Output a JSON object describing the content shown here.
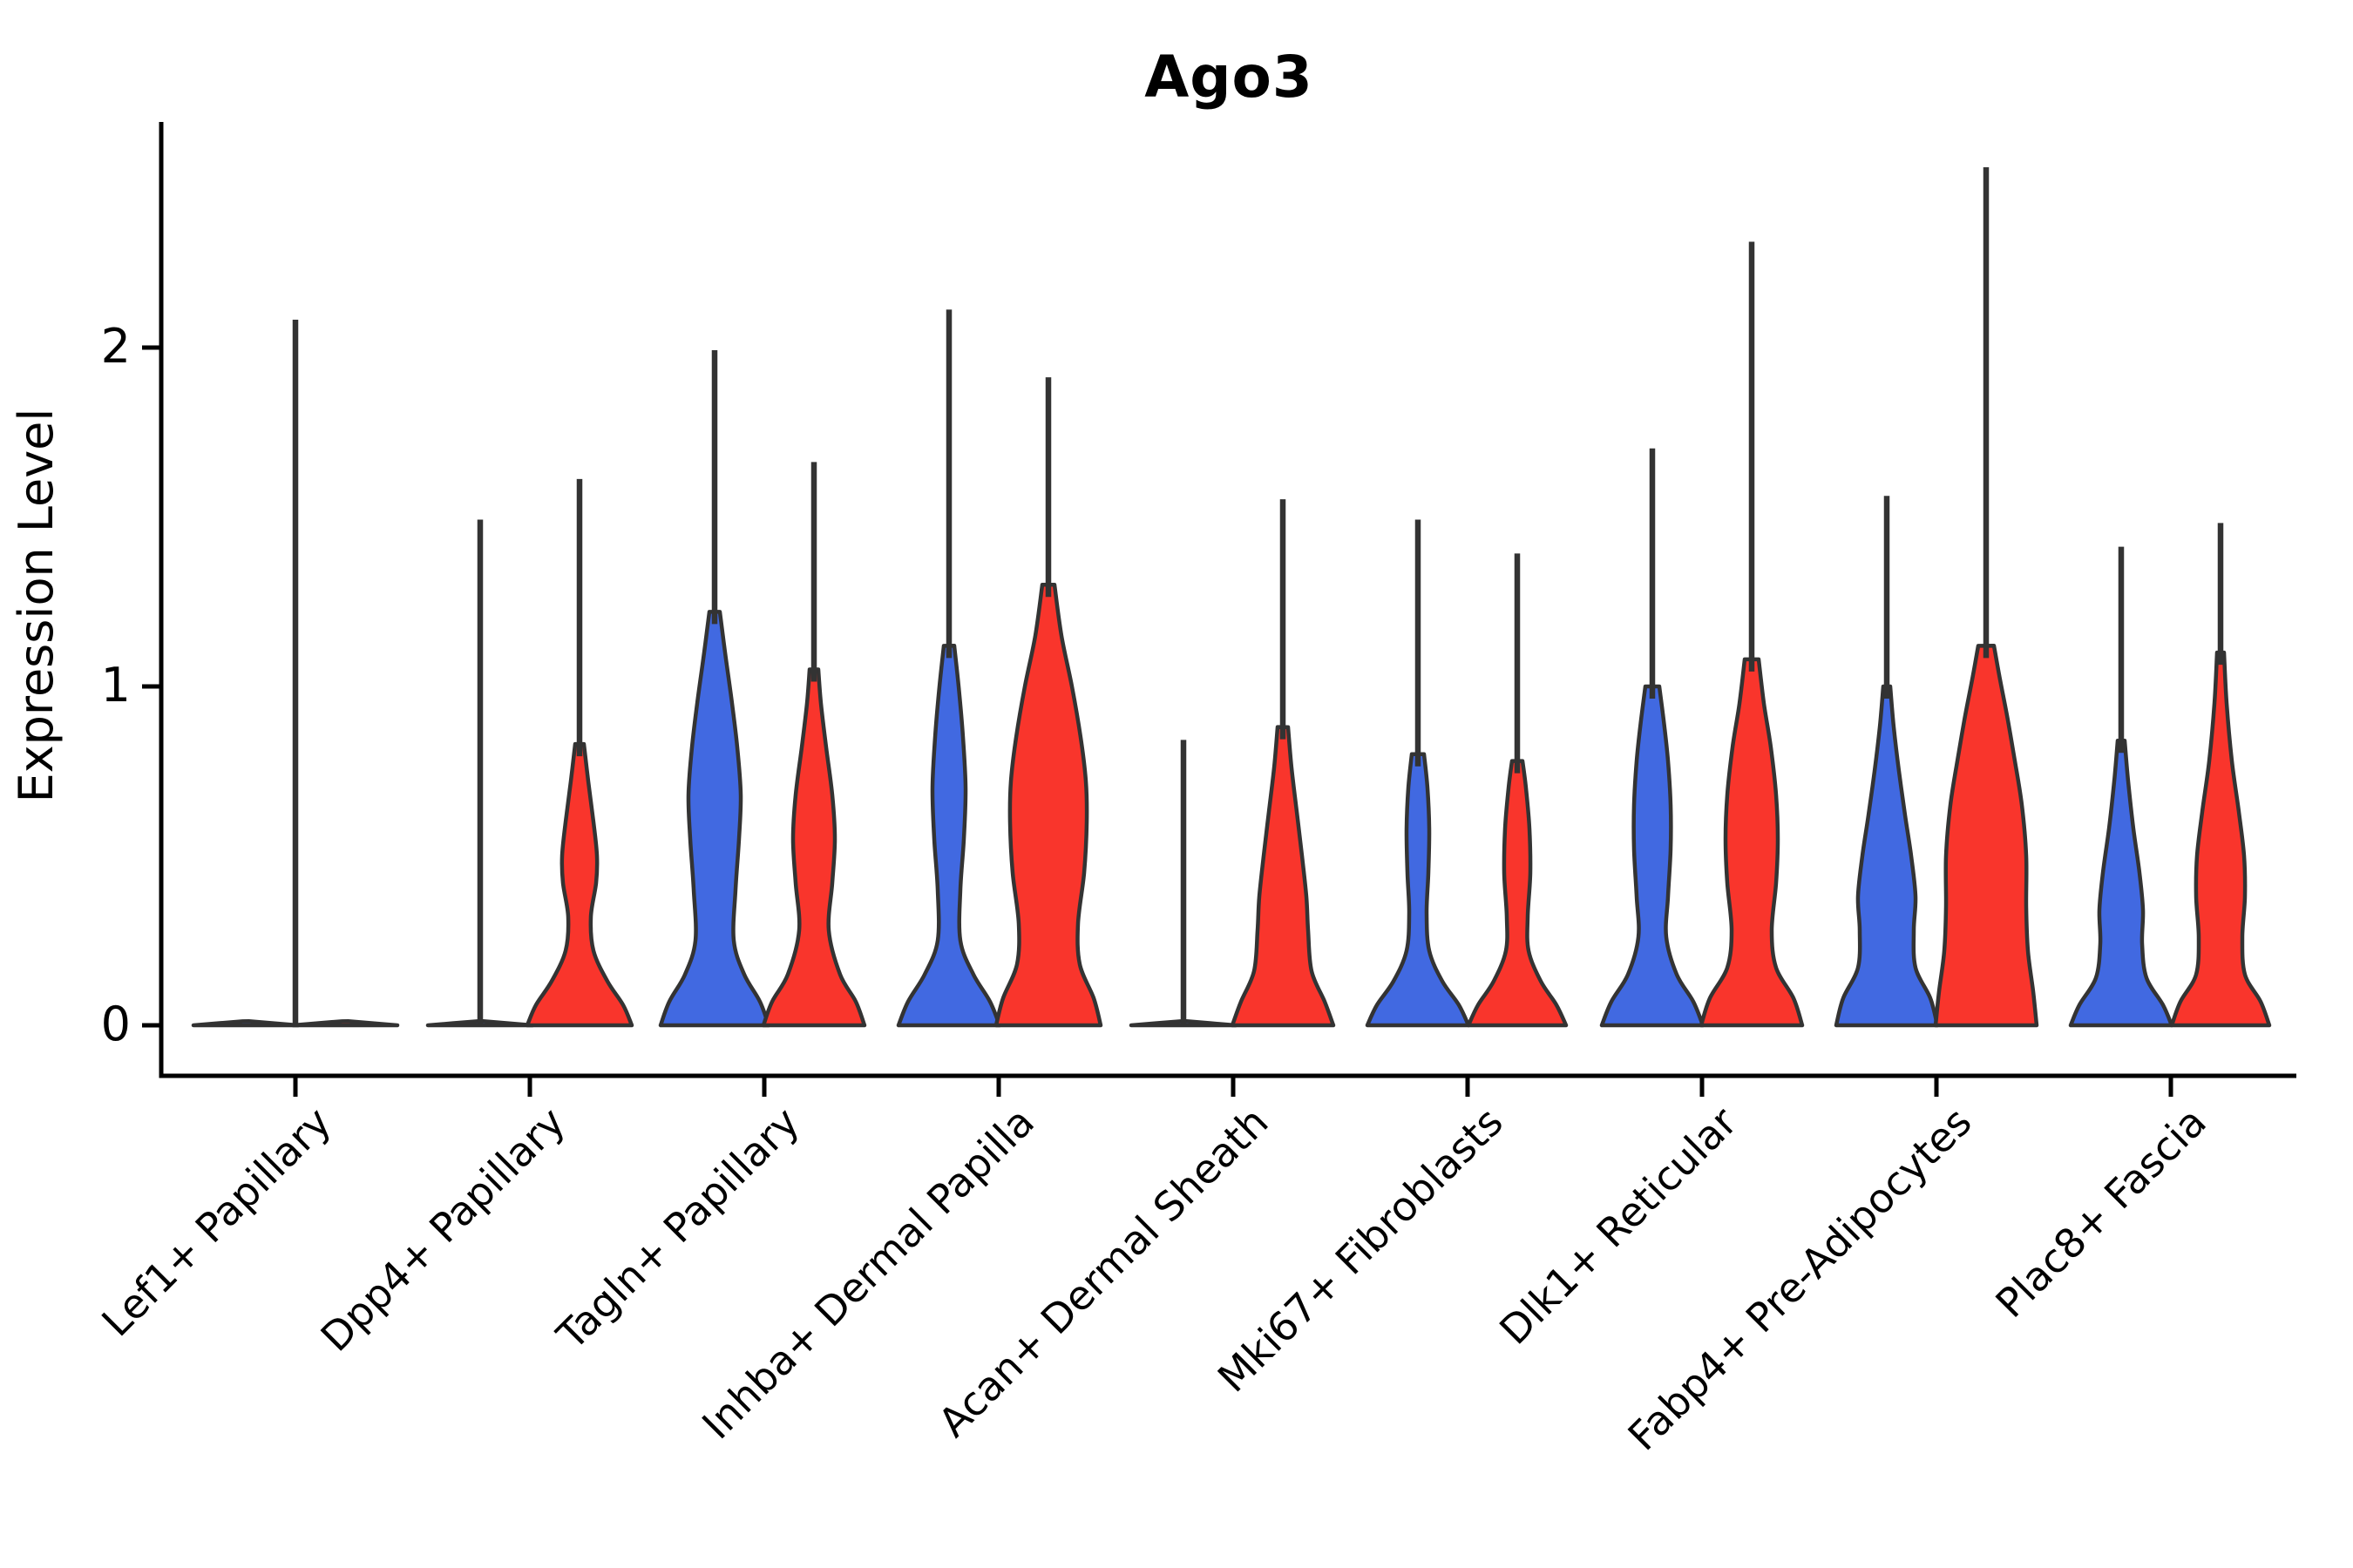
{
  "chart_data": {
    "type": "violin",
    "title": "Ago3",
    "ylabel": "Expression Level",
    "xlabel": "",
    "yticks": [
      "0",
      "1",
      "2"
    ],
    "ytick_values": [
      0,
      1,
      2
    ],
    "ylim": [
      -0.15,
      2.67
    ],
    "grid": false,
    "legend": "none",
    "split_colors": {
      "blue": "#4169E1",
      "red": "#F9352C"
    },
    "outline_color": "#333333",
    "categories": [
      "Lef1+ Papillary",
      "Dpp4+ Papillary",
      "Tagln+ Papillary",
      "Inhba+ Dermal Papilla",
      "Acan+ Dermal Sheath",
      "Mki67+ Fibroblasts",
      "Dlk1+ Reticular",
      "Fabp4+ Pre-Adipocytes",
      "Plac8+ Fascia"
    ],
    "violins": [
      {
        "category": "Lef1+ Papillary",
        "blue": {
          "max_expression": 2.09,
          "flat": true,
          "spike_dx": 57,
          "profile": []
        },
        "red": {
          "max_expression": 0.0,
          "flat": true,
          "spike_dx": 0,
          "profile": []
        }
      },
      {
        "category": "Dpp4+ Papillary",
        "blue": {
          "max_expression": 1.5,
          "flat": true,
          "spike_dx": 0,
          "profile": []
        },
        "red": {
          "max_expression": 1.62,
          "flat": false,
          "spike_dx": 0,
          "profile": [
            [
              0,
              60
            ],
            [
              0.06,
              50
            ],
            [
              0.13,
              32
            ],
            [
              0.22,
              16
            ],
            [
              0.32,
              13
            ],
            [
              0.42,
              19
            ],
            [
              0.5,
              20
            ],
            [
              0.6,
              16
            ],
            [
              0.72,
              10
            ],
            [
              0.83,
              5
            ]
          ]
        }
      },
      {
        "category": "Tagln+ Papillary",
        "blue": {
          "max_expression": 2.0,
          "flat": false,
          "spike_dx": 0,
          "profile": [
            [
              0,
              62
            ],
            [
              0.07,
              52
            ],
            [
              0.15,
              34
            ],
            [
              0.25,
              22
            ],
            [
              0.4,
              24
            ],
            [
              0.55,
              28
            ],
            [
              0.68,
              30
            ],
            [
              0.82,
              26
            ],
            [
              0.95,
              20
            ],
            [
              1.1,
              12
            ],
            [
              1.22,
              6
            ]
          ]
        },
        "red": {
          "max_expression": 1.67,
          "flat": false,
          "spike_dx": 0,
          "profile": [
            [
              0,
              58
            ],
            [
              0.07,
              48
            ],
            [
              0.15,
              30
            ],
            [
              0.28,
              17
            ],
            [
              0.42,
              21
            ],
            [
              0.55,
              24
            ],
            [
              0.68,
              21
            ],
            [
              0.82,
              14
            ],
            [
              0.95,
              8
            ],
            [
              1.05,
              5
            ]
          ]
        }
      },
      {
        "category": "Inhba+ Dermal Papilla",
        "blue": {
          "max_expression": 2.12,
          "flat": false,
          "spike_dx": 0,
          "profile": [
            [
              0,
              58
            ],
            [
              0.07,
              47
            ],
            [
              0.15,
              28
            ],
            [
              0.25,
              13
            ],
            [
              0.4,
              13
            ],
            [
              0.55,
              17
            ],
            [
              0.7,
              19
            ],
            [
              0.85,
              16
            ],
            [
              1.0,
              11
            ],
            [
              1.12,
              6
            ]
          ]
        },
        "red": {
          "max_expression": 1.92,
          "flat": false,
          "spike_dx": 0,
          "profile": [
            [
              0,
              60
            ],
            [
              0.08,
              52
            ],
            [
              0.18,
              36
            ],
            [
              0.3,
              34
            ],
            [
              0.45,
              41
            ],
            [
              0.6,
              44
            ],
            [
              0.72,
              43
            ],
            [
              0.85,
              37
            ],
            [
              1.0,
              27
            ],
            [
              1.15,
              15
            ],
            [
              1.3,
              7
            ]
          ]
        }
      },
      {
        "category": "Acan+ Dermal Sheath",
        "blue": {
          "max_expression": 0.85,
          "flat": true,
          "spike_dx": 0,
          "profile": []
        },
        "red": {
          "max_expression": 1.56,
          "flat": false,
          "spike_dx": 0,
          "profile": [
            [
              0,
              58
            ],
            [
              0.07,
              48
            ],
            [
              0.16,
              33
            ],
            [
              0.28,
              29
            ],
            [
              0.38,
              27
            ],
            [
              0.5,
              22
            ],
            [
              0.63,
              16
            ],
            [
              0.76,
              10
            ],
            [
              0.88,
              6
            ]
          ]
        }
      },
      {
        "category": "Mki67+ Fibroblasts",
        "blue": {
          "max_expression": 1.5,
          "flat": false,
          "spike_dx": 0,
          "profile": [
            [
              0,
              58
            ],
            [
              0.06,
              47
            ],
            [
              0.13,
              28
            ],
            [
              0.22,
              13
            ],
            [
              0.33,
              10
            ],
            [
              0.45,
              12
            ],
            [
              0.58,
              13
            ],
            [
              0.7,
              11
            ],
            [
              0.8,
              7
            ]
          ]
        },
        "red": {
          "max_expression": 1.4,
          "flat": false,
          "spike_dx": 0,
          "profile": [
            [
              0,
              56
            ],
            [
              0.06,
              45
            ],
            [
              0.13,
              27
            ],
            [
              0.22,
              13
            ],
            [
              0.32,
              12
            ],
            [
              0.45,
              15
            ],
            [
              0.58,
              14
            ],
            [
              0.7,
              10
            ],
            [
              0.78,
              6
            ]
          ]
        }
      },
      {
        "category": "Dlk1+ Reticular",
        "blue": {
          "max_expression": 1.71,
          "flat": false,
          "spike_dx": 0,
          "profile": [
            [
              0,
              58
            ],
            [
              0.07,
              47
            ],
            [
              0.15,
              28
            ],
            [
              0.26,
              16
            ],
            [
              0.38,
              18
            ],
            [
              0.52,
              21
            ],
            [
              0.65,
              21
            ],
            [
              0.78,
              18
            ],
            [
              0.9,
              13
            ],
            [
              1.0,
              8
            ]
          ]
        },
        "red": {
          "max_expression": 2.32,
          "flat": false,
          "spike_dx": 0,
          "profile": [
            [
              0,
              58
            ],
            [
              0.08,
              48
            ],
            [
              0.17,
              28
            ],
            [
              0.28,
              23
            ],
            [
              0.42,
              28
            ],
            [
              0.55,
              30
            ],
            [
              0.68,
              28
            ],
            [
              0.82,
              22
            ],
            [
              0.95,
              14
            ],
            [
              1.08,
              8
            ]
          ]
        }
      },
      {
        "category": "Fabp4+ Pre-Adipocytes",
        "blue": {
          "max_expression": 1.57,
          "flat": false,
          "spike_dx": 0,
          "profile": [
            [
              0,
              58
            ],
            [
              0.08,
              50
            ],
            [
              0.17,
              33
            ],
            [
              0.28,
              31
            ],
            [
              0.38,
              33
            ],
            [
              0.5,
              28
            ],
            [
              0.62,
              21
            ],
            [
              0.75,
              14
            ],
            [
              0.88,
              8
            ],
            [
              1.0,
              4
            ]
          ]
        },
        "red": {
          "max_expression": 2.54,
          "flat": false,
          "spike_dx": 0,
          "profile": [
            [
              0,
              58
            ],
            [
              0.1,
              54
            ],
            [
              0.22,
              48
            ],
            [
              0.35,
              46
            ],
            [
              0.5,
              46
            ],
            [
              0.65,
              41
            ],
            [
              0.78,
              33
            ],
            [
              0.9,
              25
            ],
            [
              1.02,
              16
            ],
            [
              1.12,
              9
            ]
          ]
        }
      },
      {
        "category": "Plac8+ Fascia",
        "blue": {
          "max_expression": 1.42,
          "flat": false,
          "spike_dx": 0,
          "profile": [
            [
              0,
              58
            ],
            [
              0.06,
              48
            ],
            [
              0.14,
              29
            ],
            [
              0.24,
              24
            ],
            [
              0.34,
              25
            ],
            [
              0.45,
              21
            ],
            [
              0.58,
              14
            ],
            [
              0.72,
              8
            ],
            [
              0.84,
              4
            ]
          ]
        },
        "red": {
          "max_expression": 1.49,
          "flat": false,
          "spike_dx": 0,
          "profile": [
            [
              0,
              56
            ],
            [
              0.07,
              46
            ],
            [
              0.15,
              28
            ],
            [
              0.26,
              25
            ],
            [
              0.38,
              28
            ],
            [
              0.5,
              27
            ],
            [
              0.63,
              21
            ],
            [
              0.78,
              13
            ],
            [
              0.95,
              7
            ],
            [
              1.1,
              4
            ]
          ]
        }
      }
    ]
  }
}
